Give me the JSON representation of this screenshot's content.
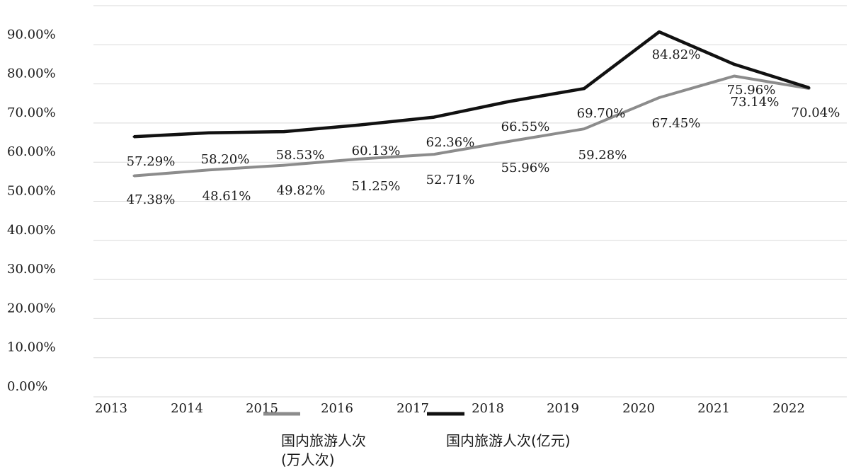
{
  "chart_data": {
    "type": "line",
    "title": "",
    "xlabel": "",
    "ylabel": "",
    "ylim": [
      0,
      100
    ],
    "y_tick_step": 10,
    "y_tick_labels": [
      "0.00%",
      "10.00%",
      "20.00%",
      "30.00%",
      "40.00%",
      "50.00%",
      "60.00%",
      "70.00%",
      "80.00%",
      "90.00%"
    ],
    "grid": true,
    "legend_position": "bottom",
    "x": [
      "2013",
      "2014",
      "2015",
      "2016",
      "2017",
      "2018",
      "2019",
      "2020",
      "2021",
      "2022"
    ],
    "series": [
      {
        "name": "国内旅游人次（万人次）",
        "legend_lines": [
          "国内旅游人次",
          "(万人次)"
        ],
        "color": "#8c8c8c",
        "values": [
          56.5,
          58.0,
          59.2,
          60.8,
          62.0,
          65.3,
          68.5,
          76.5,
          82.0,
          78.8
        ],
        "labels": [
          "47.38%",
          "48.61%",
          "49.82%",
          "51.25%",
          "52.71%",
          "55.96%",
          "59.28%",
          "67.45%",
          "73.14%",
          "70.04%"
        ]
      },
      {
        "name": "国内旅游人次(亿元)",
        "legend_lines": [
          "国内旅游人次(亿元)"
        ],
        "color": "#111111",
        "values": [
          66.5,
          67.5,
          67.8,
          69.5,
          71.5,
          75.5,
          78.8,
          93.3,
          85.0,
          79.0
        ],
        "labels": [
          "57.29%",
          "58.20%",
          "58.53%",
          "60.13%",
          "62.36%",
          "66.55%",
          "69.70%",
          "84.82%",
          "75.96%",
          "70.04%"
        ]
      }
    ]
  }
}
